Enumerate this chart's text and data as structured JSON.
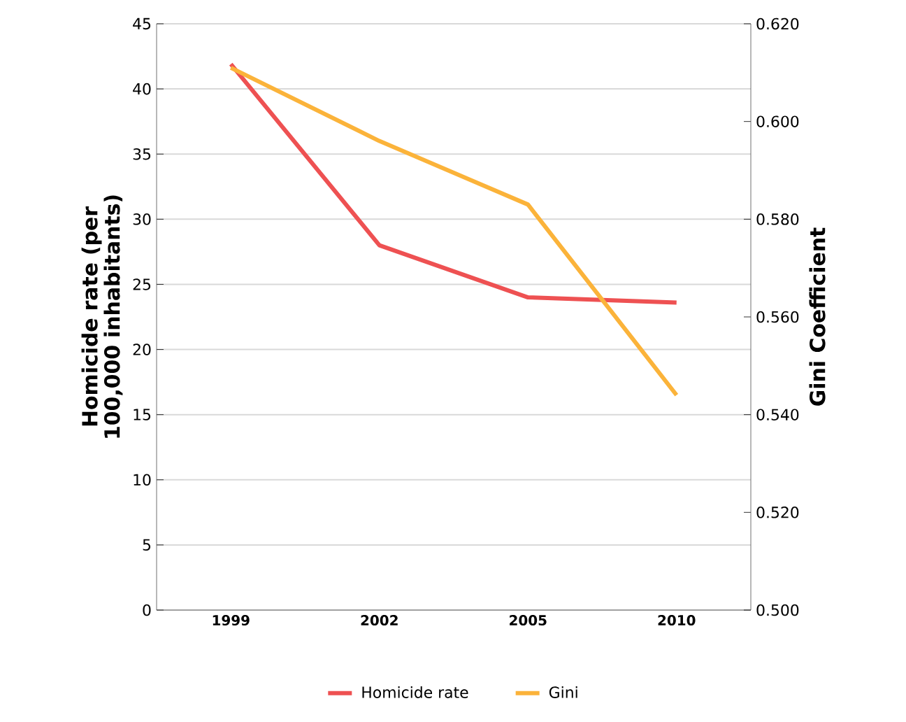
{
  "chart_data": {
    "type": "line",
    "categories": [
      "1999",
      "2002",
      "2005",
      "2010"
    ],
    "series": [
      {
        "name": "Homicide rate",
        "color": "#ee5152",
        "values": [
          41.9,
          28.0,
          24.0,
          23.6
        ]
      },
      {
        "name": "Gini",
        "color": "#fbb33a",
        "values": [
          0.611,
          0.596,
          0.583,
          0.544
        ],
        "axis": "y2"
      }
    ],
    "ylabel": "Homicide rate (per 100,000 inhabitants)",
    "y2label": "Gini Coefficient",
    "ylim": [
      0,
      45
    ],
    "yticks": [
      0,
      5,
      10,
      15,
      20,
      25,
      30,
      35,
      40,
      45
    ],
    "y2lim": [
      0.5,
      0.62
    ],
    "y2ticks": [
      {
        "value": 0.5,
        "label": "0.500"
      },
      {
        "value": 0.52,
        "label": "0.520"
      },
      {
        "value": 0.54,
        "label": "0.540"
      },
      {
        "value": 0.56,
        "label": "0.560"
      },
      {
        "value": 0.58,
        "label": "0.580"
      },
      {
        "value": 0.6,
        "label": "0.600"
      },
      {
        "value": 0.62,
        "label": "0.620"
      }
    ],
    "grid": "y",
    "legend": "bottom"
  }
}
